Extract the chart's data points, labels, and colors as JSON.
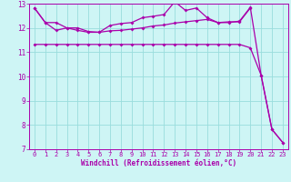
{
  "xlabel": "Windchill (Refroidissement éolien,°C)",
  "bg_color": "#cef5f5",
  "line_color": "#aa00aa",
  "grid_color": "#99dddd",
  "xlim": [
    -0.5,
    23.5
  ],
  "ylim": [
    7,
    13
  ],
  "yticks": [
    7,
    8,
    9,
    10,
    11,
    12,
    13
  ],
  "xticks": [
    0,
    1,
    2,
    3,
    4,
    5,
    6,
    7,
    8,
    9,
    10,
    11,
    12,
    13,
    14,
    15,
    16,
    17,
    18,
    19,
    20,
    21,
    22,
    23
  ],
  "line1_x": [
    0,
    1,
    2,
    3,
    4,
    5,
    6,
    7,
    8,
    9,
    10,
    11,
    12,
    13,
    14,
    15,
    16,
    17,
    18,
    19,
    20
  ],
  "line1_y": [
    12.82,
    12.22,
    12.22,
    12.0,
    11.9,
    11.82,
    11.82,
    11.88,
    11.9,
    11.95,
    12.0,
    12.08,
    12.12,
    12.2,
    12.25,
    12.3,
    12.35,
    12.22,
    12.25,
    12.25,
    12.82
  ],
  "line2_x": [
    0,
    1,
    2,
    3,
    4,
    5,
    6,
    7,
    8,
    9,
    10,
    11,
    12,
    13,
    14,
    15,
    16,
    17,
    18,
    19,
    20,
    21,
    22,
    23
  ],
  "line2_y": [
    12.82,
    12.22,
    11.9,
    12.0,
    12.0,
    11.85,
    11.82,
    12.1,
    12.18,
    12.22,
    12.42,
    12.48,
    12.55,
    13.08,
    12.72,
    12.82,
    12.42,
    12.22,
    12.22,
    12.28,
    12.85,
    10.05,
    7.82,
    7.28
  ],
  "line3_x": [
    0,
    1,
    2,
    3,
    4,
    5,
    6,
    7,
    8,
    9,
    10,
    11,
    12,
    13,
    14,
    15,
    16,
    17,
    18,
    19,
    20,
    21,
    22,
    23
  ],
  "line3_y": [
    11.32,
    11.32,
    11.32,
    11.32,
    11.32,
    11.32,
    11.32,
    11.32,
    11.32,
    11.32,
    11.32,
    11.32,
    11.32,
    11.32,
    11.32,
    11.32,
    11.32,
    11.32,
    11.32,
    11.32,
    11.18,
    10.05,
    7.82,
    7.28
  ],
  "marker": "D",
  "markersize": 2.0,
  "linewidth": 0.9,
  "tick_fontsize": 5.0,
  "xlabel_fontsize": 5.5
}
